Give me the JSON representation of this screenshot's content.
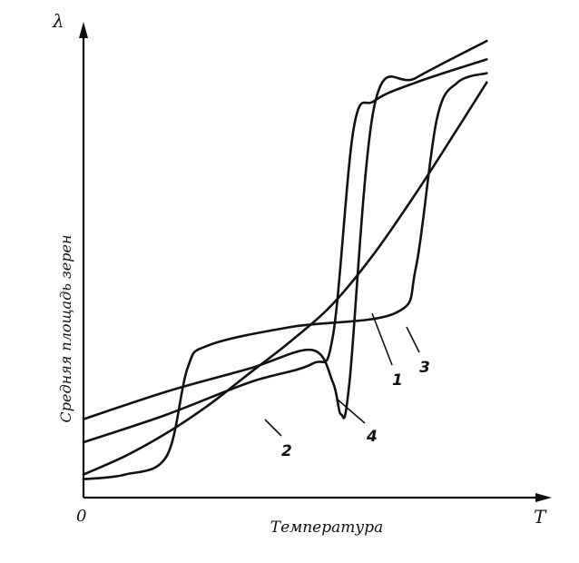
{
  "chart_data": {
    "type": "line",
    "title": "",
    "xlabel": "Температура",
    "ylabel": "Средняя площадь зерен",
    "x_axis_end_label": "T",
    "y_axis_end_label": "λ",
    "origin_label": "0",
    "xlim": [
      0,
      1
    ],
    "ylim": [
      0,
      1
    ],
    "grid": false,
    "legend": "none",
    "series": [
      {
        "name": "1",
        "x": [
          0.0,
          0.1,
          0.2,
          0.3,
          0.4,
          0.5,
          0.6,
          0.7,
          0.8,
          0.9,
          0.97
        ],
        "y": [
          0.05,
          0.09,
          0.14,
          0.2,
          0.27,
          0.34,
          0.42,
          0.53,
          0.66,
          0.8,
          0.9
        ]
      },
      {
        "name": "2",
        "x": [
          0.0,
          0.2,
          0.4,
          0.55,
          0.6,
          0.65,
          0.7,
          0.8,
          0.97
        ],
        "y": [
          0.12,
          0.18,
          0.25,
          0.29,
          0.35,
          0.8,
          0.86,
          0.9,
          0.95
        ]
      },
      {
        "name": "3",
        "x": [
          0.0,
          0.1,
          0.2,
          0.25,
          0.3,
          0.5,
          0.75,
          0.8,
          0.85,
          0.9,
          0.97
        ],
        "y": [
          0.04,
          0.05,
          0.09,
          0.28,
          0.33,
          0.37,
          0.4,
          0.5,
          0.82,
          0.9,
          0.92
        ]
      },
      {
        "name": "4",
        "x": [
          0.0,
          0.2,
          0.4,
          0.55,
          0.6,
          0.62,
          0.64,
          0.7,
          0.8,
          0.97
        ],
        "y": [
          0.17,
          0.23,
          0.28,
          0.32,
          0.25,
          0.18,
          0.25,
          0.85,
          0.91,
          0.99
        ]
      }
    ]
  }
}
